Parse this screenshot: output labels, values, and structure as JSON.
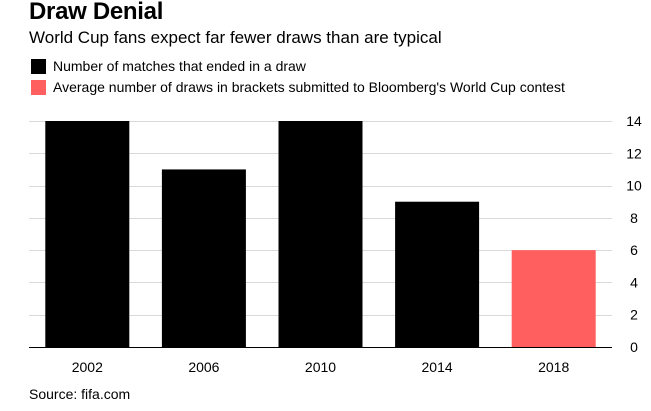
{
  "title": "Draw Denial",
  "subtitle": "World Cup fans expect far fewer draws than are typical",
  "legend": [
    {
      "label": "Number of matches that ended in a draw",
      "color": "#000000"
    },
    {
      "label": "Average number of draws in brackets submitted to Bloomberg's World Cup contest",
      "color": "#ff5f5f"
    }
  ],
  "source": "Source: fifa.com",
  "chart_data": {
    "type": "bar",
    "title": "Draw Denial",
    "subtitle": "World Cup fans expect far fewer draws than are typical",
    "categories": [
      "2002",
      "2006",
      "2010",
      "2014",
      "2018"
    ],
    "series": [
      {
        "name": "Number of matches that ended in a draw",
        "color": "#000000",
        "values": [
          14,
          11,
          14,
          9,
          null
        ]
      },
      {
        "name": "Average number of draws in brackets submitted to Bloomberg's World Cup contest",
        "color": "#ff5f5f",
        "values": [
          null,
          null,
          null,
          null,
          6
        ]
      }
    ],
    "xlabel": "",
    "ylabel": "",
    "ylim": [
      0,
      14
    ],
    "yticks": [
      0,
      2,
      4,
      6,
      8,
      10,
      12,
      14
    ],
    "grid": true,
    "legend_position": "top-left",
    "y_axis_side": "right"
  }
}
